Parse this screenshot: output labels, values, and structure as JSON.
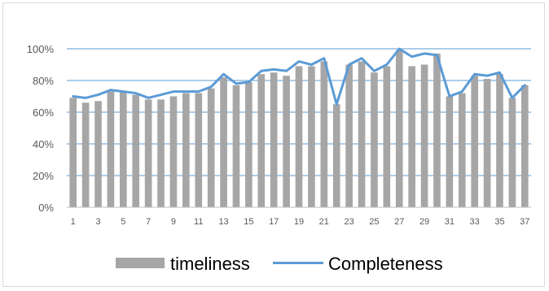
{
  "chart_data": {
    "type": "bar",
    "x": [
      1,
      2,
      3,
      4,
      5,
      6,
      7,
      8,
      9,
      10,
      11,
      12,
      13,
      14,
      15,
      16,
      17,
      18,
      19,
      20,
      21,
      22,
      23,
      24,
      25,
      26,
      27,
      28,
      29,
      30,
      31,
      32,
      33,
      34,
      35,
      36,
      37
    ],
    "x_tick_labels": [
      "1",
      "3",
      "5",
      "7",
      "9",
      "11",
      "13",
      "15",
      "17",
      "19",
      "21",
      "23",
      "25",
      "27",
      "29",
      "31",
      "33",
      "35",
      "37"
    ],
    "ylim": [
      0,
      1
    ],
    "y_tick_labels": [
      "0%",
      "20%",
      "40%",
      "60%",
      "80%",
      "100%"
    ],
    "grid": true,
    "legend": "bottom",
    "series": [
      {
        "name": "timeliness",
        "type": "bar",
        "color": "#a6a6a6",
        "values": [
          0.69,
          0.66,
          0.67,
          0.73,
          0.73,
          0.71,
          0.68,
          0.68,
          0.7,
          0.72,
          0.72,
          0.75,
          0.82,
          0.77,
          0.79,
          0.84,
          0.85,
          0.83,
          0.89,
          0.89,
          0.92,
          0.65,
          0.9,
          0.92,
          0.85,
          0.89,
          0.99,
          0.89,
          0.9,
          0.97,
          0.7,
          0.72,
          0.83,
          0.81,
          0.84,
          0.69,
          0.77
        ]
      },
      {
        "name": "Completeness",
        "type": "line",
        "color": "#5b9bd5",
        "values": [
          0.7,
          0.69,
          0.71,
          0.74,
          0.73,
          0.72,
          0.69,
          0.71,
          0.73,
          0.73,
          0.73,
          0.76,
          0.84,
          0.78,
          0.79,
          0.86,
          0.87,
          0.86,
          0.92,
          0.9,
          0.94,
          0.65,
          0.9,
          0.94,
          0.86,
          0.9,
          1.0,
          0.95,
          0.97,
          0.96,
          0.7,
          0.73,
          0.84,
          0.83,
          0.85,
          0.69,
          0.77
        ]
      }
    ]
  }
}
